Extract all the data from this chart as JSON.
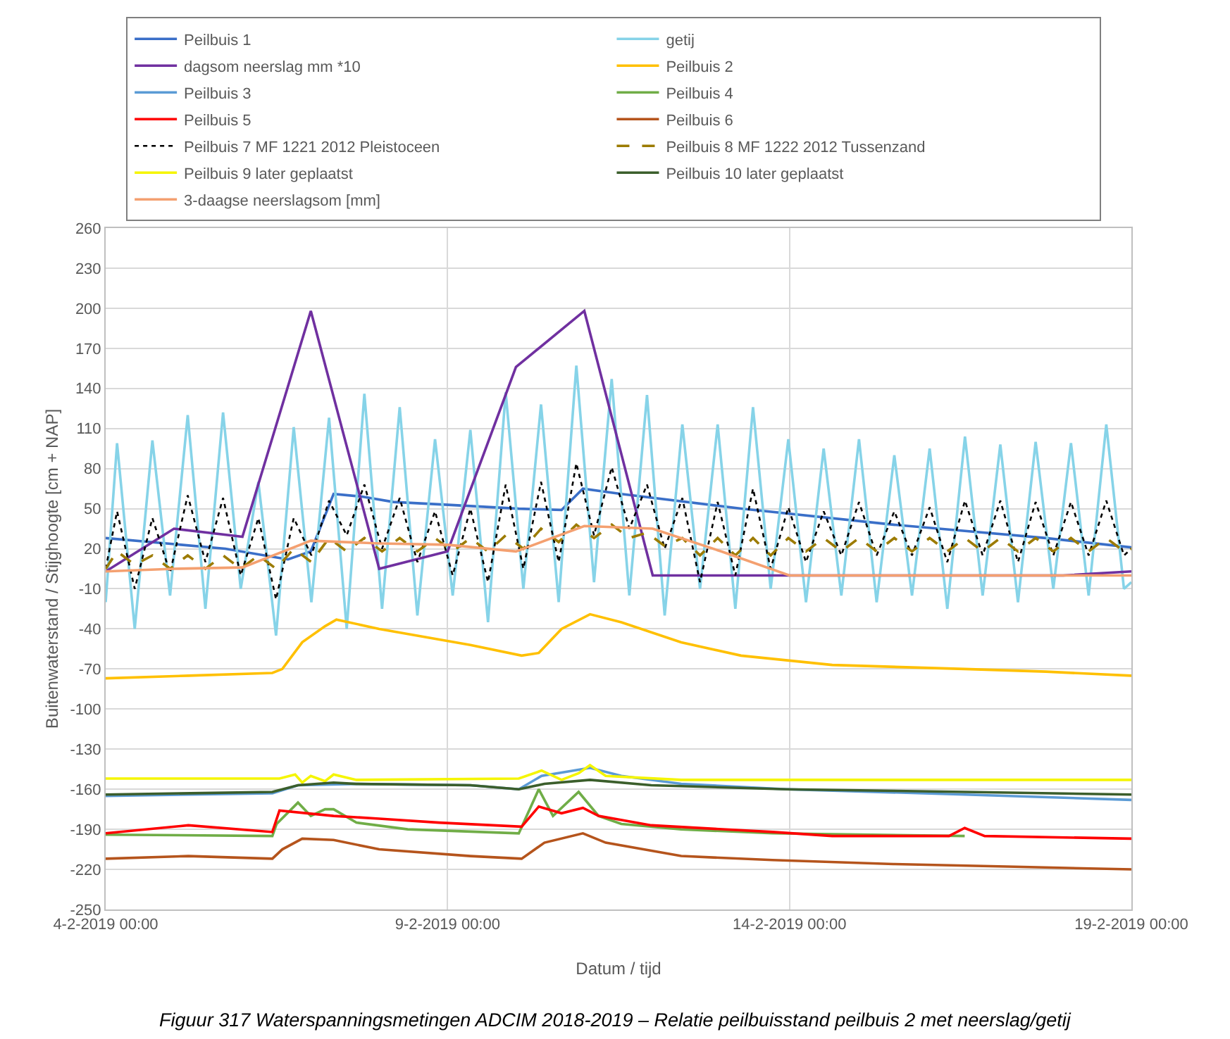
{
  "chart_data": {
    "type": "line",
    "title": "Figuur 317 Waterspanningsmetingen ADCIM 2018-2019 – Relatie peilbuisstand peilbuis 2 met neerslag/getij",
    "xlabel": "Datum / tijd",
    "ylabel": "Buitenwaterstand / Stijghoogte [cm + NAP]",
    "xlim": [
      "2019-02-04",
      "2019-02-19"
    ],
    "xticks": [
      {
        "value": "2019-02-04",
        "label": "4-2-2019 00:00"
      },
      {
        "value": "2019-02-09",
        "label": "9-2-2019 00:00"
      },
      {
        "value": "2019-02-14",
        "label": "14-2-2019 00:00"
      },
      {
        "value": "2019-02-19",
        "label": "19-2-2019 00:00"
      }
    ],
    "ylim": [
      -250,
      260
    ],
    "yticks": [
      -250,
      -220,
      -190,
      -160,
      -130,
      -100,
      -70,
      -40,
      -10,
      20,
      50,
      80,
      110,
      140,
      170,
      200,
      230,
      260
    ],
    "grid": true,
    "legend": "top",
    "marker": "none",
    "line_style": "solid",
    "x": [
      "2019-02-04T00:00",
      "2019-02-04T04:00",
      "2019-02-04T10:12",
      "2019-02-04T16:24",
      "2019-02-04T22:36",
      "2019-02-05T04:48",
      "2019-02-05T11:00",
      "2019-02-05T17:12",
      "2019-02-05T23:24",
      "2019-02-06T05:36",
      "2019-02-06T11:48",
      "2019-02-06T18:00",
      "2019-02-07T00:12",
      "2019-02-07T06:24",
      "2019-02-07T12:36",
      "2019-02-07T18:48",
      "2019-02-08T01:00",
      "2019-02-08T07:12",
      "2019-02-08T13:24",
      "2019-02-08T19:36",
      "2019-02-09T01:48",
      "2019-02-09T08:00",
      "2019-02-09T14:12",
      "2019-02-09T20:24",
      "2019-02-10T02:36",
      "2019-02-10T08:48",
      "2019-02-10T15:00",
      "2019-02-10T21:12",
      "2019-02-11T03:24",
      "2019-02-11T09:36",
      "2019-02-11T15:48",
      "2019-02-11T22:00",
      "2019-02-12T04:12",
      "2019-02-12T10:24",
      "2019-02-12T16:36",
      "2019-02-12T22:48",
      "2019-02-13T05:00",
      "2019-02-13T11:12",
      "2019-02-13T17:24",
      "2019-02-13T23:36",
      "2019-02-14T05:48",
      "2019-02-14T12:00",
      "2019-02-14T18:12",
      "2019-02-15T00:24",
      "2019-02-15T06:36",
      "2019-02-15T12:48",
      "2019-02-15T19:00",
      "2019-02-16T01:12",
      "2019-02-16T07:24",
      "2019-02-16T13:36",
      "2019-02-16T19:48",
      "2019-02-17T02:00",
      "2019-02-17T08:12",
      "2019-02-17T14:24",
      "2019-02-17T20:36",
      "2019-02-18T02:48",
      "2019-02-18T09:00",
      "2019-02-18T15:12",
      "2019-02-18T21:24",
      "2019-02-19T00:00"
    ],
    "series": [
      {
        "name": "Peilbuis 1",
        "color": "#3a6fc8",
        "x": [
          "2019-02-04T00:00",
          "2019-02-05T18:00",
          "2019-02-06T16:00",
          "2019-02-07T00:00",
          "2019-02-07T08:00",
          "2019-02-07T18:00",
          "2019-02-08T05:00",
          "2019-02-08T23:00",
          "2019-02-10T01:00",
          "2019-02-10T16:00",
          "2019-02-10T23:30",
          "2019-02-11T13:00",
          "2019-02-13T07:00",
          "2019-02-15T12:30",
          "2019-02-17T18:00",
          "2019-02-19T00:00"
        ],
        "values": [
          28,
          20,
          12,
          18,
          61,
          59,
          55,
          53,
          50,
          49,
          65,
          61,
          50,
          38,
          28,
          21
        ]
      },
      {
        "name": "getij",
        "color": "#86d3e8",
        "values": [
          -20,
          99,
          -40,
          101,
          -15,
          120,
          -25,
          122,
          -10,
          70,
          -45,
          111,
          -20,
          118,
          -40,
          136,
          -25,
          126,
          -30,
          102,
          -15,
          109,
          -35,
          137,
          -10,
          128,
          -20,
          157,
          -5,
          147,
          -15,
          135,
          -30,
          113,
          -10,
          113,
          -25,
          126,
          -10,
          102,
          -20,
          95,
          -15,
          102,
          -20,
          90,
          -15,
          95,
          -25,
          104,
          -15,
          98,
          -20,
          100,
          -10,
          99,
          -15,
          113,
          -10,
          -5
        ]
      },
      {
        "name": "dagsom neerslag mm *10",
        "color": "#7030a0",
        "x": [
          "2019-02-04",
          "2019-02-05",
          "2019-02-06",
          "2019-02-07",
          "2019-02-08",
          "2019-02-09",
          "2019-02-10",
          "2019-02-11",
          "2019-02-12",
          "2019-02-13",
          "2019-02-14",
          "2019-02-15",
          "2019-02-16",
          "2019-02-17",
          "2019-02-18",
          "2019-02-19"
        ],
        "values": [
          3,
          35,
          29,
          198,
          5,
          18,
          156,
          198,
          0,
          0,
          0,
          0,
          0,
          0,
          0,
          3
        ]
      },
      {
        "name": "Peilbuis 2",
        "color": "#ffc000",
        "x": [
          "2019-02-04T00:00",
          "2019-02-05T05:00",
          "2019-02-06T10:30",
          "2019-02-06T14:00",
          "2019-02-06T21:00",
          "2019-02-07T05:00",
          "2019-02-07T09:00",
          "2019-02-08T00:00",
          "2019-02-09T08:00",
          "2019-02-10T02:00",
          "2019-02-10T08:00",
          "2019-02-10T16:00",
          "2019-02-11T02:00",
          "2019-02-11T13:00",
          "2019-02-12T10:00",
          "2019-02-13T07:00",
          "2019-02-14T15:00",
          "2019-02-16T13:30",
          "2019-02-17T18:00",
          "2019-02-19T00:00"
        ],
        "values": [
          -77,
          -75,
          -73,
          -70,
          -50,
          -38,
          -33,
          -40,
          -52,
          -60,
          -58,
          -40,
          -29,
          -35,
          -50,
          -60,
          -67,
          -70,
          -72,
          -75
        ]
      },
      {
        "name": "Peilbuis 3",
        "color": "#5b9bd5",
        "x": [
          "2019-02-04T00:00",
          "2019-02-06T10:30",
          "2019-02-06T19:30",
          "2019-02-07T16:00",
          "2019-02-09T08:00",
          "2019-02-10T01:00",
          "2019-02-10T09:00",
          "2019-02-11T02:00",
          "2019-02-11T13:00",
          "2019-02-12T10:00",
          "2019-02-13T23:00",
          "2019-02-16T13:30",
          "2019-02-19T00:00"
        ],
        "values": [
          -165,
          -163,
          -157,
          -156,
          -157,
          -160,
          -150,
          -144,
          -150,
          -156,
          -160,
          -164,
          -168
        ]
      },
      {
        "name": "Peilbuis 4",
        "color": "#70ad47",
        "x": [
          "2019-02-04T00:00",
          "2019-02-06T10:30",
          "2019-02-06T12:00",
          "2019-02-06T19:30",
          "2019-02-07T00:00",
          "2019-02-07T05:00",
          "2019-02-07T08:00",
          "2019-02-07T16:00",
          "2019-02-08T10:00",
          "2019-02-10T01:00",
          "2019-02-10T08:00",
          "2019-02-10T13:00",
          "2019-02-10T22:00",
          "2019-02-11T05:00",
          "2019-02-11T13:00",
          "2019-02-12T10:00",
          "2019-02-13T18:00",
          "2019-02-16T13:30"
        ],
        "values": [
          -194,
          -195,
          -186,
          -170,
          -180,
          -175,
          -175,
          -185,
          -190,
          -193,
          -160,
          -180,
          -162,
          -180,
          -186,
          -190,
          -193,
          -195
        ]
      },
      {
        "name": "Peilbuis 5",
        "color": "#ff0000",
        "x": [
          "2019-02-04T00:00",
          "2019-02-05T05:00",
          "2019-02-06T10:30",
          "2019-02-06T13:00",
          "2019-02-07T08:00",
          "2019-02-08T00:00",
          "2019-02-08T21:00",
          "2019-02-10T02:00",
          "2019-02-10T08:00",
          "2019-02-10T16:00",
          "2019-02-10T23:30",
          "2019-02-11T05:00",
          "2019-02-11T23:30",
          "2019-02-13T18:00",
          "2019-02-14T15:00",
          "2019-02-16T08:00",
          "2019-02-16T13:30",
          "2019-02-16T20:30",
          "2019-02-19T00:00"
        ],
        "values": [
          -193,
          -187,
          -192,
          -176,
          -180,
          -182,
          -185,
          -188,
          -173,
          -178,
          -174,
          -180,
          -187,
          -192,
          -195,
          -195,
          -189,
          -195,
          -197
        ]
      },
      {
        "name": "Peilbuis 6",
        "color": "#b5541c",
        "x": [
          "2019-02-04T00:00",
          "2019-02-05T05:00",
          "2019-02-06T10:30",
          "2019-02-06T14:00",
          "2019-02-06T21:00",
          "2019-02-07T08:00",
          "2019-02-08T00:00",
          "2019-02-09T08:00",
          "2019-02-10T02:00",
          "2019-02-10T10:00",
          "2019-02-10T23:30",
          "2019-02-11T07:30",
          "2019-02-12T10:00",
          "2019-02-13T18:00",
          "2019-02-15T12:30",
          "2019-02-17T07:00",
          "2019-02-19T00:00"
        ],
        "values": [
          -212,
          -210,
          -212,
          -205,
          -197,
          -198,
          -205,
          -210,
          -212,
          -200,
          -193,
          -200,
          -210,
          -213,
          -216,
          -218,
          -220
        ]
      },
      {
        "name": "Peilbuis 7 MF 1221 2012 Pleistoceen",
        "color": "#000000",
        "line_style": "dotted",
        "values": [
          5,
          48,
          -10,
          43,
          2,
          60,
          10,
          58,
          0,
          43,
          -18,
          43,
          15,
          56,
          30,
          68,
          20,
          58,
          10,
          48,
          0,
          50,
          -5,
          68,
          5,
          70,
          10,
          84,
          30,
          81,
          35,
          68,
          20,
          58,
          -5,
          55,
          0,
          65,
          5,
          51,
          10,
          48,
          15,
          55,
          15,
          48,
          15,
          51,
          10,
          56,
          15,
          56,
          10,
          55,
          15,
          55,
          15,
          56,
          15,
          20
        ]
      },
      {
        "name": "Peilbuis 8 MF 1222 2012 Tussenzand",
        "color": "#9c7b00",
        "line_style": "dashed",
        "values": [
          5,
          18,
          8,
          15,
          5,
          15,
          5,
          15,
          5,
          15,
          5,
          20,
          10,
          28,
          18,
          28,
          18,
          28,
          18,
          28,
          18,
          28,
          18,
          30,
          20,
          35,
          25,
          38,
          28,
          38,
          28,
          32,
          22,
          28,
          15,
          28,
          15,
          28,
          15,
          28,
          18,
          28,
          18,
          28,
          18,
          28,
          18,
          28,
          18,
          28,
          18,
          28,
          18,
          28,
          18,
          28,
          18,
          28,
          18,
          20
        ]
      },
      {
        "name": "Peilbuis 9 later geplaatst",
        "color": "#f5f500",
        "x": [
          "2019-02-04T00:00",
          "2019-02-06T13:00",
          "2019-02-06T18:30",
          "2019-02-06T21:00",
          "2019-02-07T00:00",
          "2019-02-07T05:00",
          "2019-02-07T08:00",
          "2019-02-07T16:00",
          "2019-02-10T01:00",
          "2019-02-10T09:00",
          "2019-02-10T16:00",
          "2019-02-10T22:00",
          "2019-02-11T02:00",
          "2019-02-11T07:30",
          "2019-02-12T10:00",
          "2019-02-19T00:00"
        ],
        "values": [
          -152,
          -152,
          -149,
          -155,
          -150,
          -154,
          -149,
          -153,
          -152,
          -146,
          -153,
          -148,
          -142,
          -150,
          -153,
          -153
        ]
      },
      {
        "name": "Peilbuis 10 later geplaatst",
        "color": "#3b5e2b",
        "x": [
          "2019-02-04T00:00",
          "2019-02-06T10:30",
          "2019-02-06T19:30",
          "2019-02-07T08:00",
          "2019-02-07T16:00",
          "2019-02-09T08:00",
          "2019-02-10T01:00",
          "2019-02-10T10:00",
          "2019-02-11T02:00",
          "2019-02-11T23:30",
          "2019-02-13T23:00",
          "2019-02-16T13:30",
          "2019-02-19T00:00"
        ],
        "values": [
          -164,
          -162,
          -157,
          -155,
          -156,
          -157,
          -160,
          -156,
          -153,
          -157,
          -160,
          -162,
          -164
        ]
      },
      {
        "name": "3-daagse neerslagsom [mm]",
        "color": "#f4a070",
        "x": [
          "2019-02-04",
          "2019-02-05",
          "2019-02-06",
          "2019-02-07",
          "2019-02-08",
          "2019-02-09",
          "2019-02-10",
          "2019-02-11",
          "2019-02-12",
          "2019-02-13",
          "2019-02-14",
          "2019-02-15",
          "2019-02-16",
          "2019-02-17",
          "2019-02-18",
          "2019-02-19"
        ],
        "values": [
          3,
          5,
          6,
          26,
          24,
          23,
          18,
          37,
          35,
          18,
          0,
          0,
          0,
          0,
          0,
          0
        ]
      }
    ]
  }
}
